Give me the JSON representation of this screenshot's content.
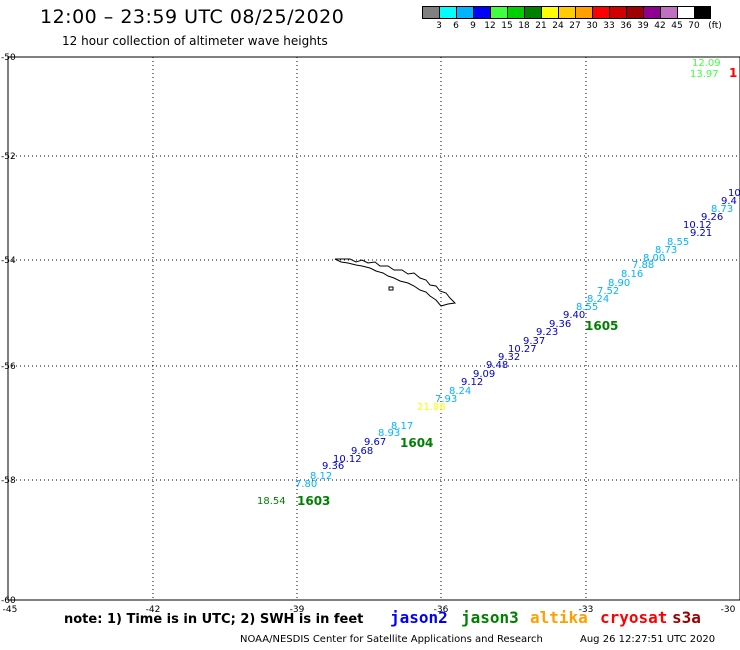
{
  "header": {
    "title": "12:00 – 23:59 UTC 08/25/2020",
    "subtitle": "12 hour collection of altimeter wave heights"
  },
  "color_scale": {
    "colors": [
      "#808080",
      "#00ffff",
      "#00b4ff",
      "#0000ff",
      "#40ff40",
      "#00d000",
      "#008000",
      "#ffff00",
      "#ffcc00",
      "#ffa000",
      "#ff0000",
      "#d00000",
      "#a00000",
      "#900090",
      "#c070c0",
      "#ffffff",
      "#000000"
    ],
    "labels": [
      "3",
      "6",
      "9",
      "12",
      "15",
      "18",
      "21",
      "24",
      "27",
      "30",
      "33",
      "36",
      "39",
      "42",
      "45",
      "70",
      "(ft)"
    ]
  },
  "axes": {
    "lat_labels": [
      "-50",
      "-52",
      "-54",
      "-56",
      "-58",
      "-60"
    ],
    "lon_labels": [
      "-45",
      "-42",
      "-39",
      "-36",
      "-33",
      "-30"
    ]
  },
  "tracks": [
    {
      "name": "upper-right",
      "points": [
        {
          "text": "12.09",
          "color": "#40ff40"
        },
        {
          "text": "13.97",
          "color": "#40ff40"
        },
        {
          "text": "1",
          "color": "#ff0000"
        }
      ]
    },
    {
      "name": "main",
      "points": [
        {
          "text": "10",
          "color": "#0000cc"
        },
        {
          "text": "9.4",
          "color": "#0000cc"
        },
        {
          "text": "8.73",
          "color": "#00b4ff"
        },
        {
          "text": "9.26",
          "color": "#0000cc"
        },
        {
          "text": "10.12",
          "color": "#0000cc"
        },
        {
          "text": "9.21",
          "color": "#0000cc"
        },
        {
          "text": "8.55",
          "color": "#00b4ff"
        },
        {
          "text": "8.73",
          "color": "#00b4ff"
        },
        {
          "text": "8.00",
          "color": "#00b4ff"
        },
        {
          "text": "7.88",
          "color": "#00b4ff"
        },
        {
          "text": "8.16",
          "color": "#00b4ff"
        },
        {
          "text": "8.90",
          "color": "#00b4ff"
        },
        {
          "text": "7.52",
          "color": "#00b4ff"
        },
        {
          "text": "8.24",
          "color": "#00b4ff"
        },
        {
          "text": "8.55",
          "color": "#00b4ff"
        },
        {
          "text": "9.40",
          "color": "#0000cc"
        },
        {
          "text": "9.36",
          "color": "#0000cc"
        },
        {
          "text": "9.23",
          "color": "#0000cc"
        },
        {
          "text": "9.37",
          "color": "#0000cc"
        },
        {
          "text": "10.27",
          "color": "#0000cc"
        },
        {
          "text": "9.32",
          "color": "#0000cc"
        },
        {
          "text": "9.48",
          "color": "#0000cc"
        },
        {
          "text": "9.09",
          "color": "#0000cc"
        },
        {
          "text": "9.12",
          "color": "#0000cc"
        },
        {
          "text": "8.24",
          "color": "#00b4ff"
        },
        {
          "text": "7.93",
          "color": "#00b4ff"
        },
        {
          "text": "21.88",
          "color": "#ffff00"
        },
        {
          "text": "8.17",
          "color": "#00b4ff"
        },
        {
          "text": "8.93",
          "color": "#00b4ff"
        },
        {
          "text": "9.67",
          "color": "#0000cc"
        },
        {
          "text": "9.68",
          "color": "#0000cc"
        },
        {
          "text": "10.12",
          "color": "#0000cc"
        },
        {
          "text": "9.36",
          "color": "#0000cc"
        },
        {
          "text": "8.12",
          "color": "#00b4ff"
        },
        {
          "text": "7.80",
          "color": "#00b4ff"
        }
      ]
    }
  ],
  "time_labels": [
    {
      "text": "1605",
      "color": "#008000"
    },
    {
      "text": "1604",
      "color": "#008000"
    },
    {
      "text": "1603",
      "color": "#008000"
    }
  ],
  "stray_label": {
    "text": "18.54",
    "color": "#008000"
  },
  "footer": {
    "note": "note: 1) Time is in UTC; 2) SWH is in feet",
    "missions": [
      {
        "name": "jason2",
        "color": "#0000ff"
      },
      {
        "name": "jason3",
        "color": "#008000"
      },
      {
        "name": "altika",
        "color": "#ffa000"
      },
      {
        "name": "cryosat",
        "color": "#ff0000"
      },
      {
        "name": "s3a",
        "color": "#a00000"
      }
    ],
    "credit": "NOAA/NESDIS Center for Satellite Applications and Research",
    "stamp": "Aug 26 12:27:51 UTC 2020"
  }
}
